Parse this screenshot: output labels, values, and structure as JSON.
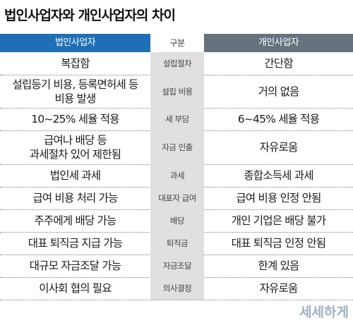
{
  "title": "법인사업자와 개인사업자의 차이",
  "header": {
    "left": "법인사업자",
    "middle": "구분",
    "right": "개인사업자"
  },
  "rows": [
    {
      "left": "복잡함",
      "category": "설립절차",
      "right": "간단함"
    },
    {
      "left": "설립등기 비용, 등록면허세 등\n비용 발생",
      "category": "설립 비용",
      "right": "거의 없음"
    },
    {
      "left": "10~25% 세율 적용",
      "category": "세 부담",
      "right": "6~45% 세율 적용"
    },
    {
      "left": "급여나 배당 등\n과세절차 있어 제한됨",
      "category": "자금 인출",
      "right": "자유로움"
    },
    {
      "left": "법인세 과세",
      "category": "과세",
      "right": "종합소득세 과세"
    },
    {
      "left": "급여 비용 처리 가능",
      "category": "대표자 급여",
      "right": "급여 비용 인정 안됨"
    },
    {
      "left": "주주에게 배당 가능",
      "category": "배당",
      "right": "개인 기업은 배당 불가"
    },
    {
      "left": "대표 퇴직금 지급 가능",
      "category": "퇴직금",
      "right": "대표 퇴직금 인정 안됨"
    },
    {
      "left": "대규모 자금조달 가능",
      "category": "자금조달",
      "right": "한계 있음"
    },
    {
      "left": "이사회 협의 필요",
      "category": "의사결정",
      "right": "자유로움"
    }
  ],
  "logo": "세세하게",
  "colors": {
    "header_left": "#1f6fb6",
    "header_right": "#66737f",
    "category_bg": "#e0e0e0",
    "logo": "#9fb0c0"
  }
}
